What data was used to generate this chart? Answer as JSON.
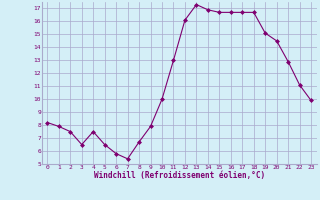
{
  "x": [
    0,
    1,
    2,
    3,
    4,
    5,
    6,
    7,
    8,
    9,
    10,
    11,
    12,
    13,
    14,
    15,
    16,
    17,
    18,
    19,
    20,
    21,
    22,
    23
  ],
  "y": [
    8.2,
    7.9,
    7.5,
    6.5,
    7.5,
    6.5,
    5.8,
    5.4,
    6.7,
    7.9,
    10.0,
    13.0,
    16.1,
    17.3,
    16.9,
    16.7,
    16.7,
    16.7,
    16.7,
    15.1,
    14.5,
    12.9,
    11.1,
    9.9
  ],
  "line_color": "#7f0070",
  "marker": "D",
  "marker_size": 2,
  "xlabel": "Windchill (Refroidissement éolien,°C)",
  "xlabel_color": "#7f0070",
  "bg_color": "#d4eff7",
  "grid_color": "#aaaacc",
  "tick_color": "#7f0070",
  "ylim": [
    5,
    17.5
  ],
  "xlim": [
    -0.5,
    23.5
  ],
  "yticks": [
    5,
    6,
    7,
    8,
    9,
    10,
    11,
    12,
    13,
    14,
    15,
    16,
    17
  ],
  "xticks": [
    0,
    1,
    2,
    3,
    4,
    5,
    6,
    7,
    8,
    9,
    10,
    11,
    12,
    13,
    14,
    15,
    16,
    17,
    18,
    19,
    20,
    21,
    22,
    23
  ]
}
